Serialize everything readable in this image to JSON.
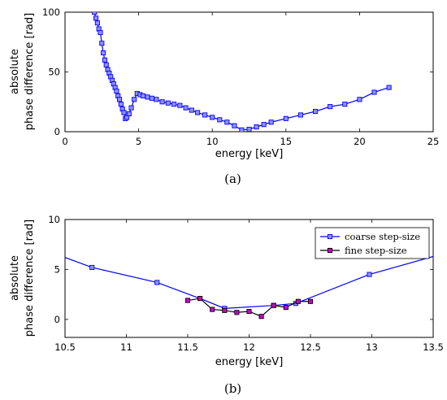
{
  "chart_data": [
    {
      "type": "line",
      "panel_label": "(a)",
      "xlabel": "energy [keV]",
      "ylabel": [
        "absolute",
        "phase difference [rad]"
      ],
      "xlim": [
        0,
        25
      ],
      "ylim": [
        0,
        100
      ],
      "xticks": [
        "0",
        "5",
        "10",
        "15",
        "20",
        "25"
      ],
      "yticks": [
        "0",
        "50",
        "100"
      ],
      "legend": "none",
      "series": [
        {
          "color": "#0000ff",
          "marker_fill": "#9090ff",
          "x": [
            2.0,
            2.1,
            2.2,
            2.3,
            2.4,
            2.5,
            2.6,
            2.7,
            2.8,
            2.9,
            3.0,
            3.1,
            3.2,
            3.3,
            3.4,
            3.5,
            3.6,
            3.7,
            3.8,
            3.9,
            4.0,
            4.1,
            4.2,
            4.35,
            4.5,
            4.7,
            4.9,
            5.1,
            5.3,
            5.6,
            5.9,
            6.2,
            6.6,
            7.0,
            7.4,
            7.8,
            8.2,
            8.6,
            9.0,
            9.5,
            10.0,
            10.5,
            11.0,
            11.5,
            12.0,
            12.5,
            13.0,
            13.5,
            14.0,
            15.0,
            16.0,
            17.0,
            18.0,
            19.0,
            20.0,
            21.0,
            22.0
          ],
          "y": [
            100,
            95,
            91,
            86,
            83,
            74,
            66,
            60,
            56,
            52,
            49,
            46,
            43,
            40,
            37,
            34,
            30,
            27,
            23,
            19,
            16,
            11,
            12,
            15,
            20,
            27,
            32,
            31,
            30,
            29,
            28,
            27,
            25,
            24,
            23,
            22,
            20,
            18,
            16,
            14,
            12,
            10,
            8,
            5,
            1.5,
            2,
            4,
            6,
            8,
            11,
            14,
            17,
            21,
            23,
            27,
            33,
            37
          ]
        }
      ]
    },
    {
      "type": "line",
      "panel_label": "(b)",
      "xlabel": "energy [keV]",
      "ylabel": [
        "absolute",
        "phase difference [rad]"
      ],
      "xlim": [
        10.5,
        13.5
      ],
      "ylim": [
        -1.8,
        10
      ],
      "xticks": [
        "10.5",
        "11",
        "11.5",
        "12",
        "12.5",
        "13",
        "13.5"
      ],
      "yticks": [
        "0",
        "5",
        "10"
      ],
      "legend": "top-right",
      "series": [
        {
          "name": "coarse step-size",
          "color": "#0000ff",
          "marker_fill": "#9090ff",
          "x": [
            10.5,
            10.72,
            11.25,
            11.62,
            11.8,
            12.2,
            12.38,
            12.98,
            13.5
          ],
          "y": [
            6.2,
            5.2,
            3.7,
            2.0,
            1.1,
            1.4,
            1.6,
            4.5,
            6.3
          ],
          "markers": [
            false,
            true,
            true,
            false,
            true,
            true,
            true,
            true,
            false
          ]
        },
        {
          "name": "fine step-size",
          "color": "#000000",
          "marker_fill": "#cc00cc",
          "x": [
            11.5,
            11.6,
            11.7,
            11.8,
            11.9,
            12.0,
            12.1,
            12.2,
            12.3,
            12.4,
            12.5
          ],
          "y": [
            1.9,
            2.1,
            1.0,
            0.9,
            0.7,
            0.8,
            0.3,
            1.4,
            1.2,
            1.8,
            1.8
          ]
        }
      ]
    }
  ]
}
